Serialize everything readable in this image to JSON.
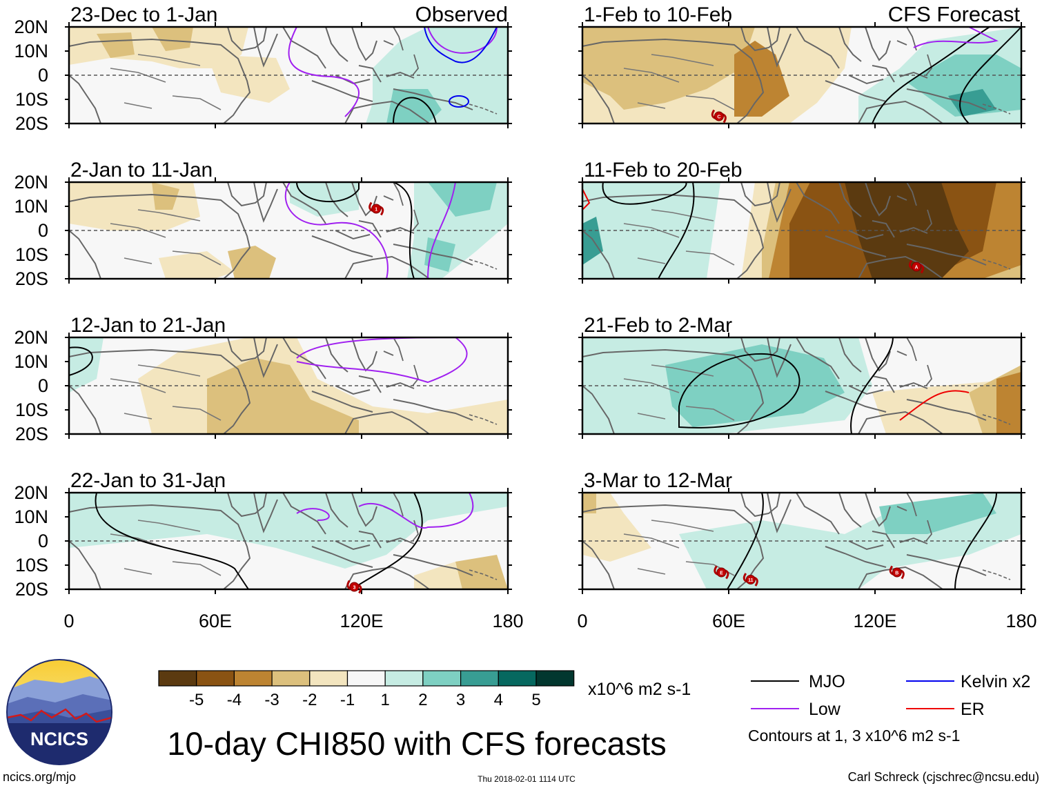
{
  "figure": {
    "title": "10-day CHI850 with CFS forecasts",
    "site": "ncics.org/mjo",
    "timestamp": "Thu 2018-02-01 1114 UTC",
    "author": "Carl Schreck (cjschrec@ncsu.edu)",
    "logo_text": "NCICS"
  },
  "axes": {
    "lat_ticks": [
      "20N",
      "10N",
      "0",
      "10S",
      "20S"
    ],
    "lon_ticks": [
      "0",
      "60E",
      "120E",
      "180"
    ],
    "lat_range": [
      -20,
      20
    ],
    "lon_range": [
      0,
      180
    ]
  },
  "columns": {
    "left_label": "Observed",
    "right_label": "CFS Forecast"
  },
  "panels_left": [
    {
      "title": "23-Dec to 1-Jan",
      "storms": []
    },
    {
      "title": "2-Jan to 11-Jan",
      "storms": [
        {
          "label": "1",
          "lon": 126,
          "lat": 9
        }
      ]
    },
    {
      "title": "12-Jan to 21-Jan",
      "storms": []
    },
    {
      "title": "22-Jan to 31-Jan",
      "storms": [
        {
          "label": "3",
          "lon": 117,
          "lat": -19
        }
      ]
    }
  ],
  "panels_right": [
    {
      "title": "1-Feb to 10-Feb",
      "storms": [
        {
          "label": "C",
          "lon": 56,
          "lat": -17
        }
      ]
    },
    {
      "title": "11-Feb to 20-Feb",
      "storms": [
        {
          "label": "A",
          "lon": 137,
          "lat": -15
        }
      ]
    },
    {
      "title": "21-Feb to 2-Mar",
      "storms": []
    },
    {
      "title": "3-Mar to 12-Mar",
      "storms": [
        {
          "label": "E",
          "lon": 57,
          "lat": -13
        },
        {
          "label": "11",
          "lon": 69,
          "lat": -16
        },
        {
          "label": "B",
          "lon": 129,
          "lat": -13
        }
      ]
    }
  ],
  "colorbar": {
    "unit": "x10^6 m2 s-1",
    "ticks": [
      "-5",
      "-4",
      "-3",
      "-2",
      "-1",
      "1",
      "2",
      "3",
      "4",
      "5"
    ],
    "colors": [
      "#5b3a10",
      "#8a5313",
      "#bd8432",
      "#dcc07d",
      "#f3e5bf",
      "#f7f7f7",
      "#c6ece3",
      "#7ed0c2",
      "#389d93",
      "#06685f",
      "#02372f"
    ]
  },
  "legend": {
    "items": [
      {
        "label": "MJO",
        "color": "#000000"
      },
      {
        "label": "Kelvin x2",
        "color": "#0000ee"
      },
      {
        "label": "Low",
        "color": "#a020f0"
      },
      {
        "label": "ER",
        "color": "#ee0000"
      }
    ],
    "note": "Contours at 1, 3 x10^6 m2 s-1"
  }
}
